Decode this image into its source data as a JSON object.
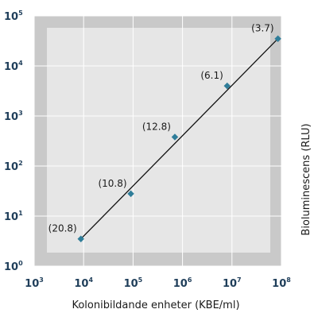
{
  "chart_data": {
    "type": "scatter",
    "xlabel": "Kolonibildande enheter (KBE/ml)",
    "ylabel": "Bioluminescens (RLU)",
    "x_scale": "log",
    "y_scale": "log",
    "xlim": [
      1000,
      100000000
    ],
    "ylim": [
      1,
      100000
    ],
    "x_ticks": [
      {
        "base": "10",
        "exp": "3"
      },
      {
        "base": "10",
        "exp": "4"
      },
      {
        "base": "10",
        "exp": "5"
      },
      {
        "base": "10",
        "exp": "6"
      },
      {
        "base": "10",
        "exp": "7"
      },
      {
        "base": "10",
        "exp": "8"
      }
    ],
    "y_ticks": [
      {
        "base": "10",
        "exp": "0"
      },
      {
        "base": "10",
        "exp": "1"
      },
      {
        "base": "10",
        "exp": "2"
      },
      {
        "base": "10",
        "exp": "3"
      },
      {
        "base": "10",
        "exp": "4"
      },
      {
        "base": "10",
        "exp": "5"
      }
    ],
    "points": [
      {
        "x": 8800,
        "y": 3.5,
        "label": "(20.8)"
      },
      {
        "x": 90000,
        "y": 28,
        "label": "(10.8)"
      },
      {
        "x": 700000,
        "y": 380,
        "label": "(12.8)"
      },
      {
        "x": 8000000,
        "y": 4000,
        "label": "(6.1)"
      },
      {
        "x": 85000000,
        "y": 35000,
        "label": "(3.7)"
      }
    ],
    "trend_line": {
      "from": {
        "x": 8800,
        "y": 3.5
      },
      "to": {
        "x": 85000000,
        "y": 35000
      }
    },
    "grid": true,
    "colors": {
      "panel": "#e6e6e6",
      "panel_edge": "#c9c9c9",
      "grid": "#ffffff",
      "marker": "#2f7d99",
      "line": "#111111",
      "tick_text": "#1f3e5a"
    }
  }
}
